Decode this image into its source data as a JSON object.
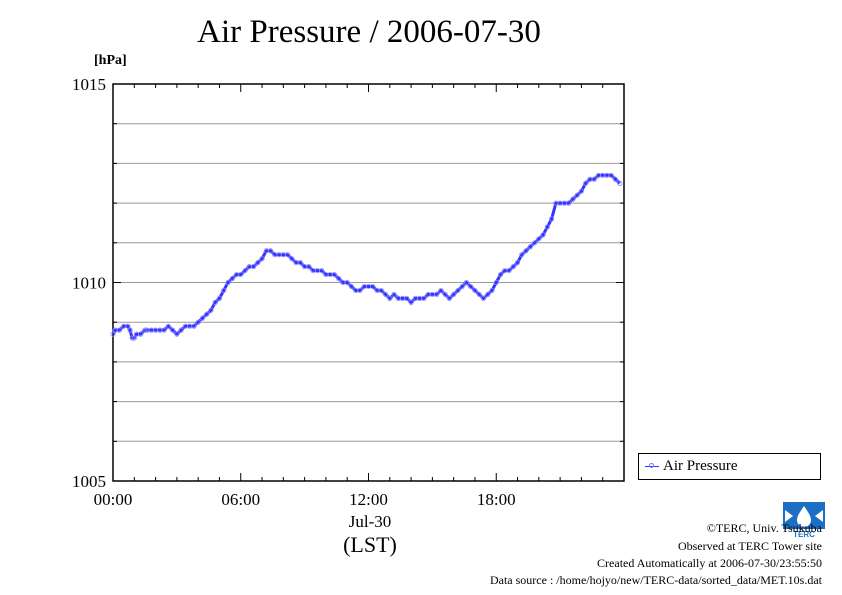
{
  "title": "Air Pressure / 2006-07-30",
  "unit_label": "[hPa]",
  "legend": {
    "label": "Air Pressure"
  },
  "x_date_label": "Jul-30",
  "x_tz_label": "(LST)",
  "footer": {
    "copyright": "©TERC, Univ. Tsukuba",
    "observed": "Observed at TERC Tower site",
    "created": "Created Automatically at 2006-07-30/23:55:50",
    "source": "Data source : /home/hojyo/new/TERC-data/sorted_data/MET.10s.dat"
  },
  "logo": {
    "text": "TERC",
    "icon": "terc-logo-icon"
  },
  "colors": {
    "series": "#3333ff",
    "marker": "#8888ff",
    "grid": "#999999"
  },
  "chart_data": {
    "type": "line",
    "title": "Air Pressure / 2006-07-30",
    "ylabel": "[hPa]",
    "xlabel": "(LST)",
    "xlim": [
      0,
      24
    ],
    "ylim": [
      1005,
      1015
    ],
    "x_ticks": [
      {
        "value": 0,
        "label": "00:00"
      },
      {
        "value": 6,
        "label": "06:00"
      },
      {
        "value": 12,
        "label": "12:00"
      },
      {
        "value": 18,
        "label": "18:00"
      }
    ],
    "y_ticks": [
      {
        "value": 1005,
        "label": "1005"
      },
      {
        "value": 1010,
        "label": "1010"
      },
      {
        "value": 1015,
        "label": "1015"
      }
    ],
    "y_grid_step": 1,
    "grid": true,
    "legend_position": "bottom-right outside",
    "series": [
      {
        "name": "Air Pressure",
        "x": [
          0.0,
          0.1,
          0.3,
          0.5,
          0.7,
          0.8,
          0.9,
          1.0,
          1.1,
          1.3,
          1.5,
          1.6,
          1.8,
          2.0,
          2.2,
          2.4,
          2.6,
          2.8,
          3.0,
          3.2,
          3.4,
          3.6,
          3.8,
          4.0,
          4.2,
          4.4,
          4.6,
          4.8,
          5.0,
          5.2,
          5.4,
          5.6,
          5.8,
          6.0,
          6.2,
          6.4,
          6.6,
          6.8,
          7.0,
          7.2,
          7.4,
          7.6,
          7.8,
          8.0,
          8.2,
          8.4,
          8.6,
          8.8,
          9.0,
          9.2,
          9.4,
          9.6,
          9.8,
          10.0,
          10.2,
          10.4,
          10.6,
          10.8,
          11.0,
          11.2,
          11.4,
          11.6,
          11.8,
          12.0,
          12.2,
          12.4,
          12.6,
          12.8,
          13.0,
          13.2,
          13.4,
          13.6,
          13.8,
          14.0,
          14.2,
          14.4,
          14.6,
          14.8,
          15.0,
          15.2,
          15.4,
          15.6,
          15.8,
          16.0,
          16.2,
          16.4,
          16.6,
          16.8,
          17.0,
          17.2,
          17.4,
          17.6,
          17.8,
          18.0,
          18.2,
          18.4,
          18.6,
          18.8,
          19.0,
          19.2,
          19.4,
          19.6,
          19.8,
          20.0,
          20.2,
          20.4,
          20.6,
          20.8,
          21.0,
          21.2,
          21.4,
          21.6,
          21.8,
          22.0,
          22.2,
          22.4,
          22.6,
          22.8,
          23.0,
          23.2,
          23.4,
          23.6,
          23.8
        ],
        "values": [
          1008.7,
          1008.8,
          1008.8,
          1008.9,
          1008.9,
          1008.8,
          1008.6,
          1008.6,
          1008.7,
          1008.7,
          1008.8,
          1008.8,
          1008.8,
          1008.8,
          1008.8,
          1008.8,
          1008.9,
          1008.8,
          1008.7,
          1008.8,
          1008.9,
          1008.9,
          1008.9,
          1009.0,
          1009.1,
          1009.2,
          1009.3,
          1009.5,
          1009.6,
          1009.8,
          1010.0,
          1010.1,
          1010.2,
          1010.2,
          1010.3,
          1010.4,
          1010.4,
          1010.5,
          1010.6,
          1010.8,
          1010.8,
          1010.7,
          1010.7,
          1010.7,
          1010.7,
          1010.6,
          1010.5,
          1010.5,
          1010.4,
          1010.4,
          1010.3,
          1010.3,
          1010.3,
          1010.2,
          1010.2,
          1010.2,
          1010.1,
          1010.0,
          1010.0,
          1009.9,
          1009.8,
          1009.8,
          1009.9,
          1009.9,
          1009.9,
          1009.8,
          1009.8,
          1009.7,
          1009.6,
          1009.7,
          1009.6,
          1009.6,
          1009.6,
          1009.5,
          1009.6,
          1009.6,
          1009.6,
          1009.7,
          1009.7,
          1009.7,
          1009.8,
          1009.7,
          1009.6,
          1009.7,
          1009.8,
          1009.9,
          1010.0,
          1009.9,
          1009.8,
          1009.7,
          1009.6,
          1009.7,
          1009.8,
          1010.0,
          1010.2,
          1010.3,
          1010.3,
          1010.4,
          1010.5,
          1010.7,
          1010.8,
          1010.9,
          1011.0,
          1011.1,
          1011.2,
          1011.4,
          1011.6,
          1012.0,
          1012.0,
          1012.0,
          1012.0,
          1012.1,
          1012.2,
          1012.3,
          1012.5,
          1012.6,
          1012.6,
          1012.7,
          1012.7,
          1012.7,
          1012.7,
          1012.6,
          1012.5
        ]
      }
    ]
  }
}
